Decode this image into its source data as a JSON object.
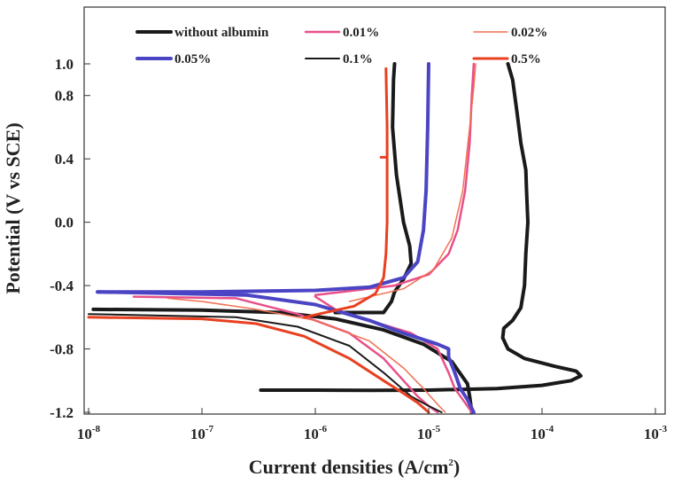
{
  "chart_data": {
    "type": "line",
    "xlabel": "Current densities (A/cm",
    "xlabel_sup": "2",
    "xlabel_end": ")",
    "ylabel": "Potential (V vs SCE)",
    "x_scale": "log",
    "xlim": [
      1e-08,
      0.001
    ],
    "ylim": [
      -1.2,
      1.3
    ],
    "x_tick_values": [
      1e-08,
      1e-07,
      1e-06,
      1e-05,
      0.0001,
      0.001
    ],
    "x_tick_labels": [
      {
        "base": "10",
        "exp": "-8"
      },
      {
        "base": "10",
        "exp": "-7"
      },
      {
        "base": "10",
        "exp": "-6"
      },
      {
        "base": "10",
        "exp": "-5"
      },
      {
        "base": "10",
        "exp": "-4"
      },
      {
        "base": "10",
        "exp": "-3"
      }
    ],
    "y_ticks": [
      1.0,
      0.8,
      0.4,
      0.0,
      -0.4,
      -0.8,
      -1.2
    ],
    "y_tick_labels": [
      "1.0",
      "0.8",
      "0.4",
      "0.0",
      "-0.4",
      "-0.8",
      "-1.2"
    ],
    "grid": false,
    "legend_position": "top",
    "series": [
      {
        "name": "without albumin",
        "color": "#1a1a1a",
        "stroke_width": 4,
        "branches": [
          [
            [
              3.3e-07,
              -1.06
            ],
            [
              1e-06,
              -1.06
            ],
            [
              3e-06,
              -1.062
            ],
            [
              1e-05,
              -1.06
            ],
            [
              4e-05,
              -1.05
            ],
            [
              0.0001,
              -1.03
            ],
            [
              0.00018,
              -1.0
            ],
            [
              0.00022,
              -0.97
            ],
            [
              0.0002,
              -0.94
            ],
            [
              0.00013,
              -0.91
            ],
            [
              7e-05,
              -0.86
            ],
            [
              5e-05,
              -0.8
            ],
            [
              4.5e-05,
              -0.73
            ],
            [
              4.6e-05,
              -0.67
            ],
            [
              5.5e-05,
              -0.62
            ],
            [
              6.5e-05,
              -0.54
            ],
            [
              7e-05,
              -0.4
            ],
            [
              7.2e-05,
              -0.2
            ],
            [
              7.5e-05,
              0.0
            ],
            [
              7.3e-05,
              0.2
            ],
            [
              7.2e-05,
              0.33
            ],
            [
              6.5e-05,
              0.5
            ],
            [
              6e-05,
              0.7
            ],
            [
              5.5e-05,
              0.9
            ],
            [
              5e-05,
              1.0
            ]
          ],
          [
            [
              2.4e-05,
              -1.2
            ],
            [
              2.3e-05,
              -1.1
            ],
            [
              2.2e-05,
              -1.02
            ],
            [
              1.6e-05,
              -0.88
            ],
            [
              9e-06,
              -0.77
            ],
            [
              4e-06,
              -0.68
            ],
            [
              1.5e-06,
              -0.61
            ],
            [
              5e-07,
              -0.57
            ],
            [
              1e-07,
              -0.555
            ],
            [
              1.1e-08,
              -0.55
            ]
          ],
          [
            [
              1.5e-06,
              -0.57
            ],
            [
              4e-06,
              -0.57
            ],
            [
              4.7e-06,
              -0.5
            ],
            [
              5e-06,
              -0.44
            ],
            [
              6e-06,
              -0.36
            ],
            [
              7e-06,
              -0.26
            ],
            [
              6.8e-06,
              -0.15
            ],
            [
              6e-06,
              0.0
            ],
            [
              5.2e-06,
              0.3
            ],
            [
              4.8e-06,
              0.6
            ],
            [
              4.9e-06,
              0.9
            ],
            [
              5e-06,
              1.0
            ]
          ]
        ]
      },
      {
        "name": "0.01%",
        "color": "#e8508a",
        "stroke_width": 2.5,
        "branches": [
          [
            [
              1.2e-05,
              -1.2
            ],
            [
              1e-05,
              -1.16
            ],
            [
              8e-06,
              -1.1
            ],
            [
              6e-06,
              -1.0
            ],
            [
              4e-06,
              -0.86
            ],
            [
              2e-06,
              -0.7
            ],
            [
              7e-07,
              -0.58
            ],
            [
              2e-07,
              -0.48
            ],
            [
              2.5e-08,
              -0.47
            ]
          ],
          [
            [
              1e-06,
              -0.46
            ],
            [
              5e-06,
              -0.4
            ],
            [
              1e-05,
              -0.33
            ],
            [
              1.5e-05,
              -0.2
            ],
            [
              1.8e-05,
              -0.05
            ],
            [
              2.1e-05,
              0.2
            ],
            [
              2.3e-05,
              0.5
            ],
            [
              2.4e-05,
              0.8
            ],
            [
              2.5e-05,
              1.0
            ]
          ],
          [
            [
              2.4e-05,
              -1.2
            ],
            [
              2e-05,
              -1.12
            ],
            [
              1.7e-05,
              -1.05
            ],
            [
              1.5e-05,
              -0.95
            ],
            [
              1.2e-05,
              -0.8
            ],
            [
              7e-06,
              -0.7
            ],
            [
              3e-06,
              -0.62
            ],
            [
              1.5e-06,
              -0.55
            ],
            [
              1e-06,
              -0.47
            ]
          ]
        ]
      },
      {
        "name": "0.02%",
        "color": "#f07050",
        "stroke_width": 1.5,
        "branches": [
          [
            [
              1.4e-05,
              -1.2
            ],
            [
              1.2e-05,
              -1.15
            ],
            [
              9e-06,
              -1.05
            ],
            [
              6e-06,
              -0.92
            ],
            [
              3e-06,
              -0.75
            ],
            [
              1e-06,
              -0.62
            ],
            [
              3e-07,
              -0.55
            ],
            [
              1e-07,
              -0.5
            ],
            [
              5e-08,
              -0.48
            ]
          ],
          [
            [
              2e-06,
              -0.5
            ],
            [
              6e-06,
              -0.42
            ],
            [
              1.1e-05,
              -0.3
            ],
            [
              1.6e-05,
              -0.1
            ],
            [
              2e-05,
              0.2
            ],
            [
              2.3e-05,
              0.6
            ],
            [
              2.5e-05,
              0.85
            ],
            [
              2.6e-05,
              1.0
            ]
          ]
        ]
      },
      {
        "name": "0.05%",
        "color": "#4b44c4",
        "stroke_width": 4,
        "branches": [
          [
            [
              1.2e-08,
              -0.44
            ],
            [
              1e-07,
              -0.44
            ],
            [
              1e-06,
              -0.43
            ],
            [
              3e-06,
              -0.41
            ],
            [
              6e-06,
              -0.35
            ],
            [
              8e-06,
              -0.25
            ],
            [
              9e-06,
              -0.05
            ],
            [
              9.5e-06,
              0.2
            ],
            [
              9.8e-06,
              0.6
            ],
            [
              1e-05,
              1.0
            ]
          ],
          [
            [
              2.5e-05,
              -1.2
            ],
            [
              2.2e-05,
              -1.12
            ],
            [
              1.9e-05,
              -1.05
            ],
            [
              1.7e-05,
              -0.95
            ],
            [
              1.5e-05,
              -0.85
            ],
            [
              1.5e-05,
              -0.8
            ],
            [
              1.2e-05,
              -0.77
            ],
            [
              6e-06,
              -0.7
            ],
            [
              3e-06,
              -0.62
            ],
            [
              1e-06,
              -0.52
            ],
            [
              2.5e-07,
              -0.46
            ],
            [
              1.2e-08,
              -0.44
            ]
          ]
        ]
      },
      {
        "name": "0.1%",
        "color": "#1a1a1a",
        "stroke_width": 2,
        "branches": [
          [
            [
              1.3e-05,
              -1.2
            ],
            [
              1e-05,
              -1.16
            ],
            [
              7e-06,
              -1.1
            ],
            [
              4e-06,
              -0.95
            ],
            [
              2e-06,
              -0.78
            ],
            [
              7e-07,
              -0.66
            ],
            [
              2e-07,
              -0.6
            ],
            [
              1e-08,
              -0.58
            ]
          ]
        ]
      },
      {
        "name": "0.5%",
        "color": "#e84020",
        "stroke_width": 3,
        "branches": [
          [
            [
              1e-05,
              -1.2
            ],
            [
              8e-06,
              -1.14
            ],
            [
              6e-06,
              -1.08
            ],
            [
              4e-06,
              -1.0
            ],
            [
              2e-06,
              -0.86
            ],
            [
              8e-07,
              -0.72
            ],
            [
              3e-07,
              -0.64
            ],
            [
              1e-07,
              -0.61
            ],
            [
              1e-08,
              -0.6
            ]
          ],
          [
            [
              8e-07,
              -0.6
            ],
            [
              2.2e-06,
              -0.53
            ],
            [
              3.4e-06,
              -0.45
            ],
            [
              4e-06,
              -0.35
            ],
            [
              4.2e-06,
              -0.2
            ],
            [
              4.3e-06,
              0.0
            ],
            [
              4.3e-06,
              0.4
            ],
            [
              4.3e-06,
              0.6
            ],
            [
              4.25e-06,
              0.8
            ],
            [
              4.2e-06,
              0.97
            ]
          ],
          [
            [
              3.8e-06,
              0.41
            ],
            [
              4.3e-06,
              0.41
            ]
          ]
        ]
      }
    ]
  }
}
